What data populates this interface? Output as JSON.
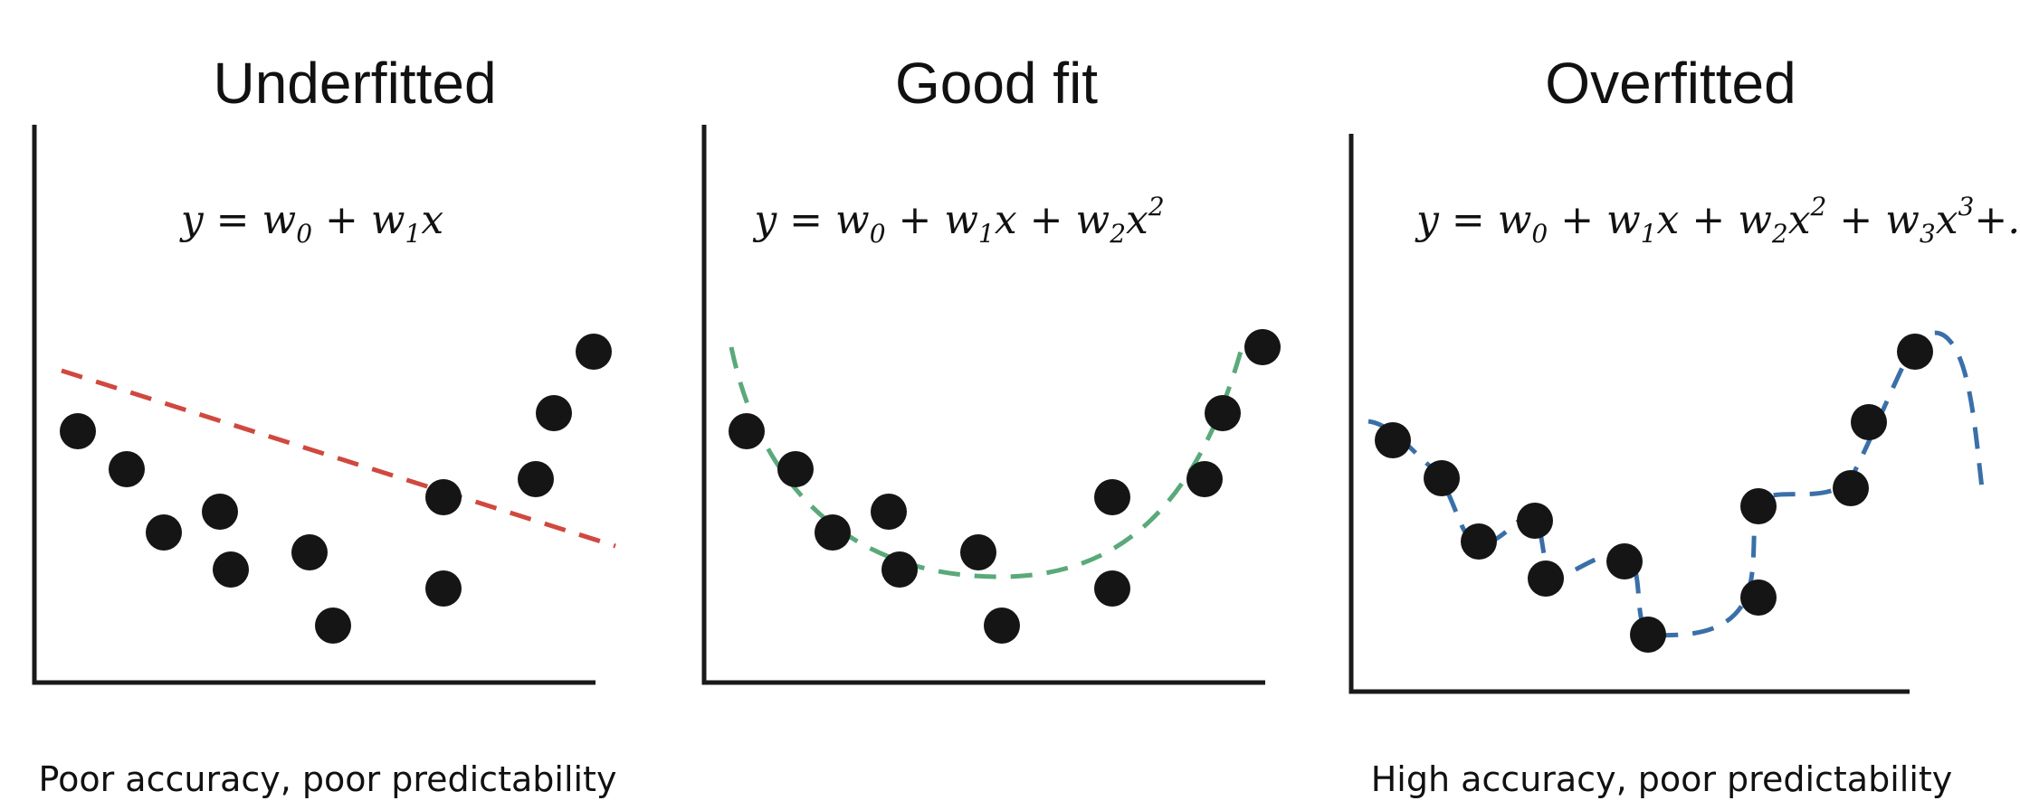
{
  "colors": {
    "underfit_line": "#d0483f",
    "goodfit_line": "#5aa97a",
    "overfit_line": "#3a6fa8",
    "points": "#151515",
    "axes": "#1a1a1a"
  },
  "panels": [
    {
      "title": "Underfitted",
      "equation": {
        "y": "y",
        "eq": " = ",
        "w0": "w",
        "w0_sub": "0",
        "plus1": " + ",
        "w1": "w",
        "w1_sub": "1",
        "x1": "x"
      },
      "caption": "Poor accuracy, poor predictability"
    },
    {
      "title": "Good fit",
      "equation": {
        "y": "y",
        "eq": " = ",
        "w0": "w",
        "w0_sub": "0",
        "plus1": " + ",
        "w1": "w",
        "w1_sub": "1",
        "x1": "x",
        "plus2": " + ",
        "w2": "w",
        "w2_sub": "2",
        "x2": "x",
        "x2_sup": "2"
      },
      "caption": ""
    },
    {
      "title": "Overfitted",
      "equation": {
        "y": "y",
        "eq": " = ",
        "w0": "w",
        "w0_sub": "0",
        "plus1": " + ",
        "w1": "w",
        "w1_sub": "1",
        "x1": "x",
        "plus2": " + ",
        "w2": "w",
        "w2_sub": "2",
        "x2": "x",
        "x2_sup": "2",
        "plus3": " + ",
        "w3": "w",
        "w3_sub": "3",
        "x3": "x",
        "x3_sup": "3",
        "tail": "+..."
      },
      "caption": "High accuracy, poor predictability"
    }
  ]
}
